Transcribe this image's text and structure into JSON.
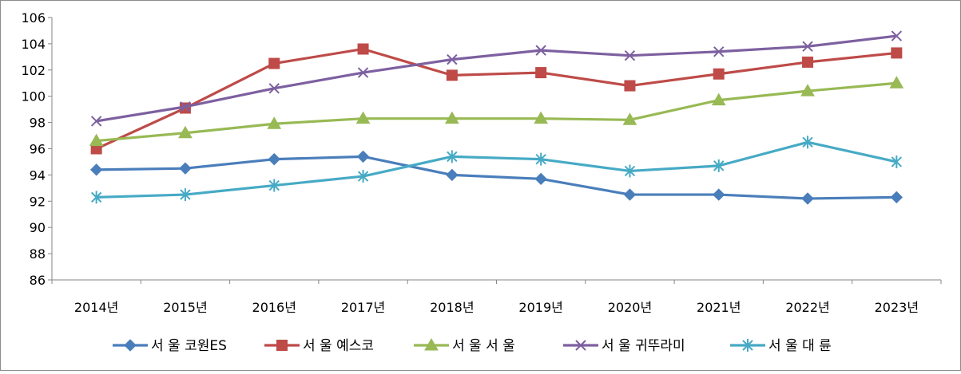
{
  "chart_data": {
    "type": "line",
    "title": "",
    "xlabel": "",
    "ylabel": "",
    "categories": [
      "2014년",
      "2015년",
      "2016년",
      "2017년",
      "2018년",
      "2019년",
      "2020년",
      "2021년",
      "2022년",
      "2023년"
    ],
    "ylim": [
      86,
      106
    ],
    "yticks": [
      "86",
      "88",
      "90",
      "92",
      "94",
      "96",
      "98",
      "100",
      "102",
      "104",
      "106"
    ],
    "grid": false,
    "legend_position": "bottom",
    "series": [
      {
        "name": "서 울 코원ES",
        "color": "#4a7ebb",
        "marker": "diamond",
        "values": [
          94.4,
          94.5,
          95.2,
          95.4,
          94.0,
          93.7,
          92.5,
          92.5,
          92.2,
          92.3
        ]
      },
      {
        "name": "서 울 예스코",
        "color": "#be4b48",
        "marker": "square",
        "values": [
          96.0,
          99.1,
          102.5,
          103.6,
          101.6,
          101.8,
          100.8,
          101.7,
          102.6,
          103.3
        ]
      },
      {
        "name": "서 울 서   울",
        "color": "#98b954",
        "marker": "triangle",
        "values": [
          96.6,
          97.2,
          97.9,
          98.3,
          98.3,
          98.3,
          98.2,
          99.7,
          100.4,
          101.0
        ]
      },
      {
        "name": "서 울 귀뚜라미",
        "color": "#7d60a0",
        "marker": "x",
        "values": [
          98.1,
          99.2,
          100.6,
          101.8,
          102.8,
          103.5,
          103.1,
          103.4,
          103.8,
          104.6
        ]
      },
      {
        "name": "서 울 대   륜",
        "color": "#46aac5",
        "marker": "star",
        "values": [
          92.3,
          92.5,
          93.2,
          93.9,
          95.4,
          95.2,
          94.3,
          94.7,
          96.5,
          95.0
        ]
      }
    ]
  }
}
